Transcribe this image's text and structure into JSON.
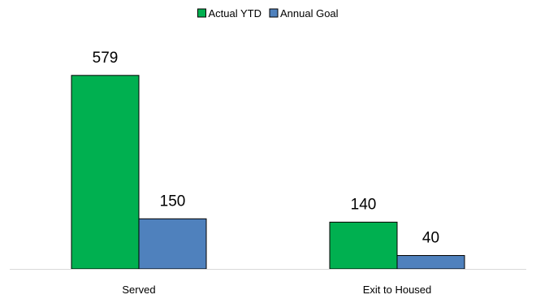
{
  "chart_data": {
    "type": "bar",
    "categories": [
      "Served",
      "Exit to Housed"
    ],
    "series": [
      {
        "name": "Actual YTD",
        "values": [
          579,
          140
        ],
        "color": "#00b050"
      },
      {
        "name": "Annual Goal",
        "values": [
          150,
          40
        ],
        "color": "#4f81bd"
      }
    ],
    "ylim": [
      0,
      700
    ],
    "legend_position": "top-center",
    "grid": false,
    "title": "",
    "xlabel": "",
    "ylabel": ""
  }
}
